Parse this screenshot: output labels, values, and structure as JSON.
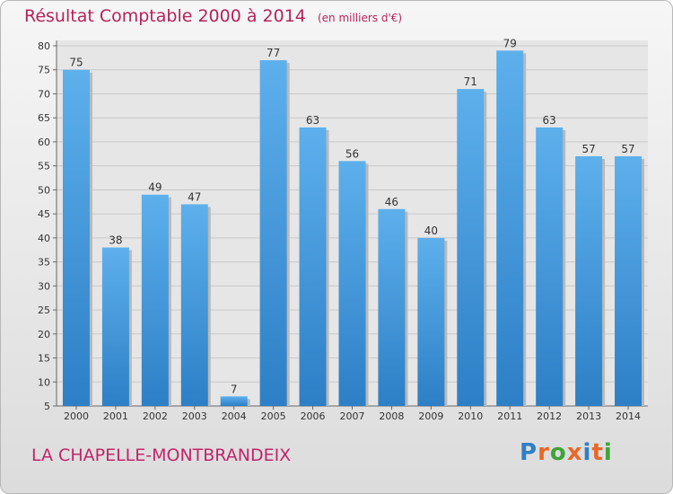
{
  "header": {
    "title": "Résultat Comptable 2000 à 2014",
    "subtitle": "(en milliers d'€)"
  },
  "footer": {
    "commune": "LA CHAPELLE-MONTBRANDEIX",
    "logo_text": "Proxiti"
  },
  "colors": {
    "title": "#b5225a",
    "bar_light": "#5db0ec",
    "bar_dark": "#2d7fc6",
    "logo": [
      "#2f7fc4",
      "#e8682a",
      "#3fa33a",
      "#e8682a",
      "#2f7fc4",
      "#e8682a",
      "#3fa33a"
    ]
  },
  "chart_data": {
    "type": "bar",
    "title": "Résultat Comptable 2000 à 2014",
    "subtitle": "(en milliers d'€)",
    "xlabel": "",
    "ylabel": "",
    "categories": [
      "2000",
      "2001",
      "2002",
      "2003",
      "2004",
      "2005",
      "2006",
      "2007",
      "2008",
      "2009",
      "2010",
      "2011",
      "2012",
      "2013",
      "2014"
    ],
    "values": [
      75,
      38,
      49,
      47,
      7,
      77,
      63,
      56,
      46,
      40,
      71,
      79,
      63,
      57,
      57
    ],
    "ylim": [
      5,
      80
    ],
    "yticks": [
      5,
      10,
      15,
      20,
      25,
      30,
      35,
      40,
      45,
      50,
      55,
      60,
      65,
      70,
      75,
      80
    ],
    "grid": true,
    "legend": "none"
  }
}
